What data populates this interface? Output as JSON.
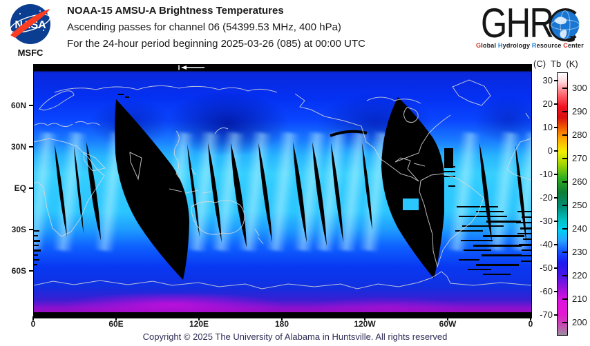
{
  "header": {
    "title": "NOAA-15 AMSU-A Brightness Temperatures",
    "line2": "Ascending passes for channel 06 (54399.53 MHz, 400 hPa)",
    "line3": "For the 24-hour period beginning 2025-03-26 (085) at 00:00 UTC"
  },
  "nasa": {
    "wordmark": "NASA",
    "caption": "MSFC"
  },
  "ghrc": {
    "letters": "GHR",
    "tagline": {
      "g": "G",
      "lobal": "lobal ",
      "h": "H",
      "ydrology": "ydrology ",
      "r": "R",
      "esource": "esource ",
      "c": "C",
      "enter": "enter"
    }
  },
  "map": {
    "lat_ticks": [
      "60N",
      "30N",
      "EQ",
      "30S",
      "60S"
    ],
    "lon_ticks": [
      "0",
      "60E",
      "120E",
      "180",
      "120W",
      "60W",
      "0"
    ]
  },
  "colorbar": {
    "title": "(C)  Tb  (K)",
    "celsius_ticks": [
      "30",
      "20",
      "10",
      "0",
      "-10",
      "-20",
      "-30",
      "-40",
      "-50",
      "-60",
      "-70"
    ],
    "kelvin_ticks": [
      "300",
      "290",
      "280",
      "270",
      "260",
      "250",
      "240",
      "230",
      "220",
      "210",
      "200"
    ]
  },
  "footer": {
    "copyright": "Copyright © 2025 The University of Alabama in Huntsville.  All rights reserved"
  },
  "colors": {
    "nasa_blue": "#0b3d91",
    "nasa_red": "#fc3d21",
    "map_bright_cyan": "#36cfff",
    "map_deep_blue": "#0430f2",
    "map_polar_magenta": "#9b0cc4",
    "swath_gap": "#000000",
    "coastline": "#d9d9d9"
  }
}
